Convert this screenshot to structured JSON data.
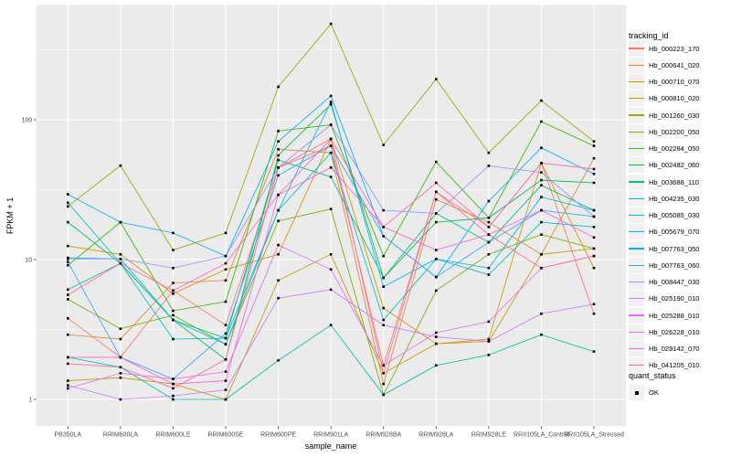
{
  "chart": {
    "xlabel": "sample_name",
    "ylabel": "FPKM + 1",
    "legend_title": "tracking_id",
    "quant_legend": {
      "title": "quant_status",
      "label": "OK"
    }
  },
  "chart_data": {
    "type": "line",
    "x_categories": [
      "PB350LA",
      "RRIM600LA",
      "RRIM600LE",
      "RRIM600SE",
      "RRIM600PE",
      "RRIM901LA",
      "RRIM928BA",
      "RRIM928LA",
      "RRIM928LE",
      "RRII105LA_Control",
      "RRII105LA_Stressed"
    ],
    "xlabel": "sample_name",
    "ylabel": "FPKM + 1",
    "y_scale": "log10",
    "y_ticks": [
      1,
      10,
      100
    ],
    "ylim": [
      0.65,
      660
    ],
    "grid": true,
    "legend_position": "right",
    "panel_bg": "#EBEBEB",
    "grid_color": "#FFFFFF",
    "point_color": "#000000",
    "legend_key_bg": "#F1F1F1",
    "tick_text_color": "#4D4D4D",
    "series": [
      {
        "name": "Hb_000223_170",
        "color": "#F8766D",
        "values": [
          3.8,
          2.0,
          6.0,
          3.4,
          45.5,
          65,
          1.75,
          30.5,
          17.1,
          49,
          4.1
        ]
      },
      {
        "name": "Hb_000641_020",
        "color": "#EA8331",
        "values": [
          2.9,
          2.7,
          6.8,
          7.1,
          61.5,
          58,
          1.29,
          26.9,
          18.5,
          10.9,
          53
        ]
      },
      {
        "name": "Hb_000710_070",
        "color": "#D89000",
        "values": [
          12.5,
          10.9,
          5.7,
          8.5,
          10.9,
          73,
          4.5,
          2.5,
          2.7,
          49,
          8.7
        ]
      },
      {
        "name": "Hb_000810_020",
        "color": "#C09B00",
        "values": [
          1.36,
          1.43,
          1.29,
          1.0,
          7.1,
          10.9,
          1.54,
          2.5,
          2.6,
          10.9,
          12.0
        ]
      },
      {
        "name": "Hb_001260_030",
        "color": "#A3A500",
        "values": [
          24,
          47,
          11.7,
          15.5,
          172,
          485,
          66,
          195,
          58,
          137,
          70
        ]
      },
      {
        "name": "Hb_002200_050",
        "color": "#7CAE00",
        "values": [
          5.2,
          3.2,
          4.0,
          2.48,
          18.9,
          23,
          1.08,
          6.0,
          10.9,
          15.1,
          12.0
        ]
      },
      {
        "name": "Hb_002284_050",
        "color": "#39B600",
        "values": [
          9.1,
          18.5,
          4.3,
          5.0,
          83,
          92,
          10.6,
          50,
          19.9,
          97,
          65
        ]
      },
      {
        "name": "Hb_002482_060",
        "color": "#00BB4E",
        "values": [
          18.5,
          9.4,
          3.7,
          1.93,
          55.6,
          129,
          7.4,
          18.5,
          19.9,
          37,
          35.4
        ]
      },
      {
        "name": "Hb_003688_110",
        "color": "#00BF7D",
        "values": [
          6.1,
          9.4,
          3.7,
          2.74,
          51.5,
          39,
          7.4,
          21.4,
          13.3,
          34,
          22.5
        ]
      },
      {
        "name": "Hb_004235_030",
        "color": "#00C1A3",
        "values": [
          2.0,
          1.7,
          1.0,
          1.0,
          1.9,
          3.4,
          1.08,
          1.75,
          2.08,
          2.9,
          2.2
        ]
      },
      {
        "name": "Hb_005085_030",
        "color": "#00BFC4",
        "values": [
          25.5,
          9.4,
          2.7,
          2.74,
          22.5,
          58,
          3.7,
          10.1,
          7.8,
          18.5,
          17.1
        ]
      },
      {
        "name": "Hb_005679_070",
        "color": "#00BAE0",
        "values": [
          10.3,
          10.1,
          3.7,
          2.48,
          22.5,
          134,
          6.4,
          10.1,
          8.7,
          28,
          22.5
        ]
      },
      {
        "name": "Hb_007763_050",
        "color": "#00B0F6",
        "values": [
          29.3,
          18.5,
          15.5,
          10.6,
          70,
          148,
          14.7,
          7.5,
          26.2,
          63,
          41
        ]
      },
      {
        "name": "Hb_007763_060",
        "color": "#35A2FF",
        "values": [
          9.6,
          2.0,
          1.4,
          2.96,
          40,
          65,
          14.7,
          7.5,
          13.3,
          22.5,
          20.3
        ]
      },
      {
        "name": "Hb_008447_030",
        "color": "#9590FF",
        "values": [
          10.1,
          10.1,
          8.7,
          10.6,
          45.5,
          92,
          22.5,
          21.4,
          46.8,
          42,
          20.3
        ]
      },
      {
        "name": "Hb_025190_010",
        "color": "#C77CFF",
        "values": [
          1.26,
          1.0,
          1.06,
          1.17,
          5.3,
          6.1,
          3.4,
          2.8,
          2.6,
          4.1,
          4.8
        ]
      },
      {
        "name": "Hb_025288_010",
        "color": "#E76BF3",
        "values": [
          1.2,
          1.54,
          1.4,
          1.58,
          12.7,
          8.5,
          1.75,
          3.0,
          3.6,
          8.7,
          10.6
        ]
      },
      {
        "name": "Hb_026228_010",
        "color": "#FA62DB",
        "values": [
          2.0,
          2.0,
          1.29,
          1.36,
          29,
          45.5,
          17.1,
          11.7,
          15.1,
          22.5,
          14.4
        ]
      },
      {
        "name": "Hb_029142_070",
        "color": "#FF62BC",
        "values": [
          5.6,
          9.4,
          6.0,
          9.4,
          29,
          73,
          17.1,
          35.4,
          17.1,
          49,
          44.4
        ]
      },
      {
        "name": "Hb_041205_010",
        "color": "#FF6A98",
        "values": [
          1.8,
          1.7,
          1.2,
          1.93,
          45.5,
          73,
          1.54,
          30.5,
          15.1,
          8.7,
          10.6
        ]
      }
    ]
  }
}
